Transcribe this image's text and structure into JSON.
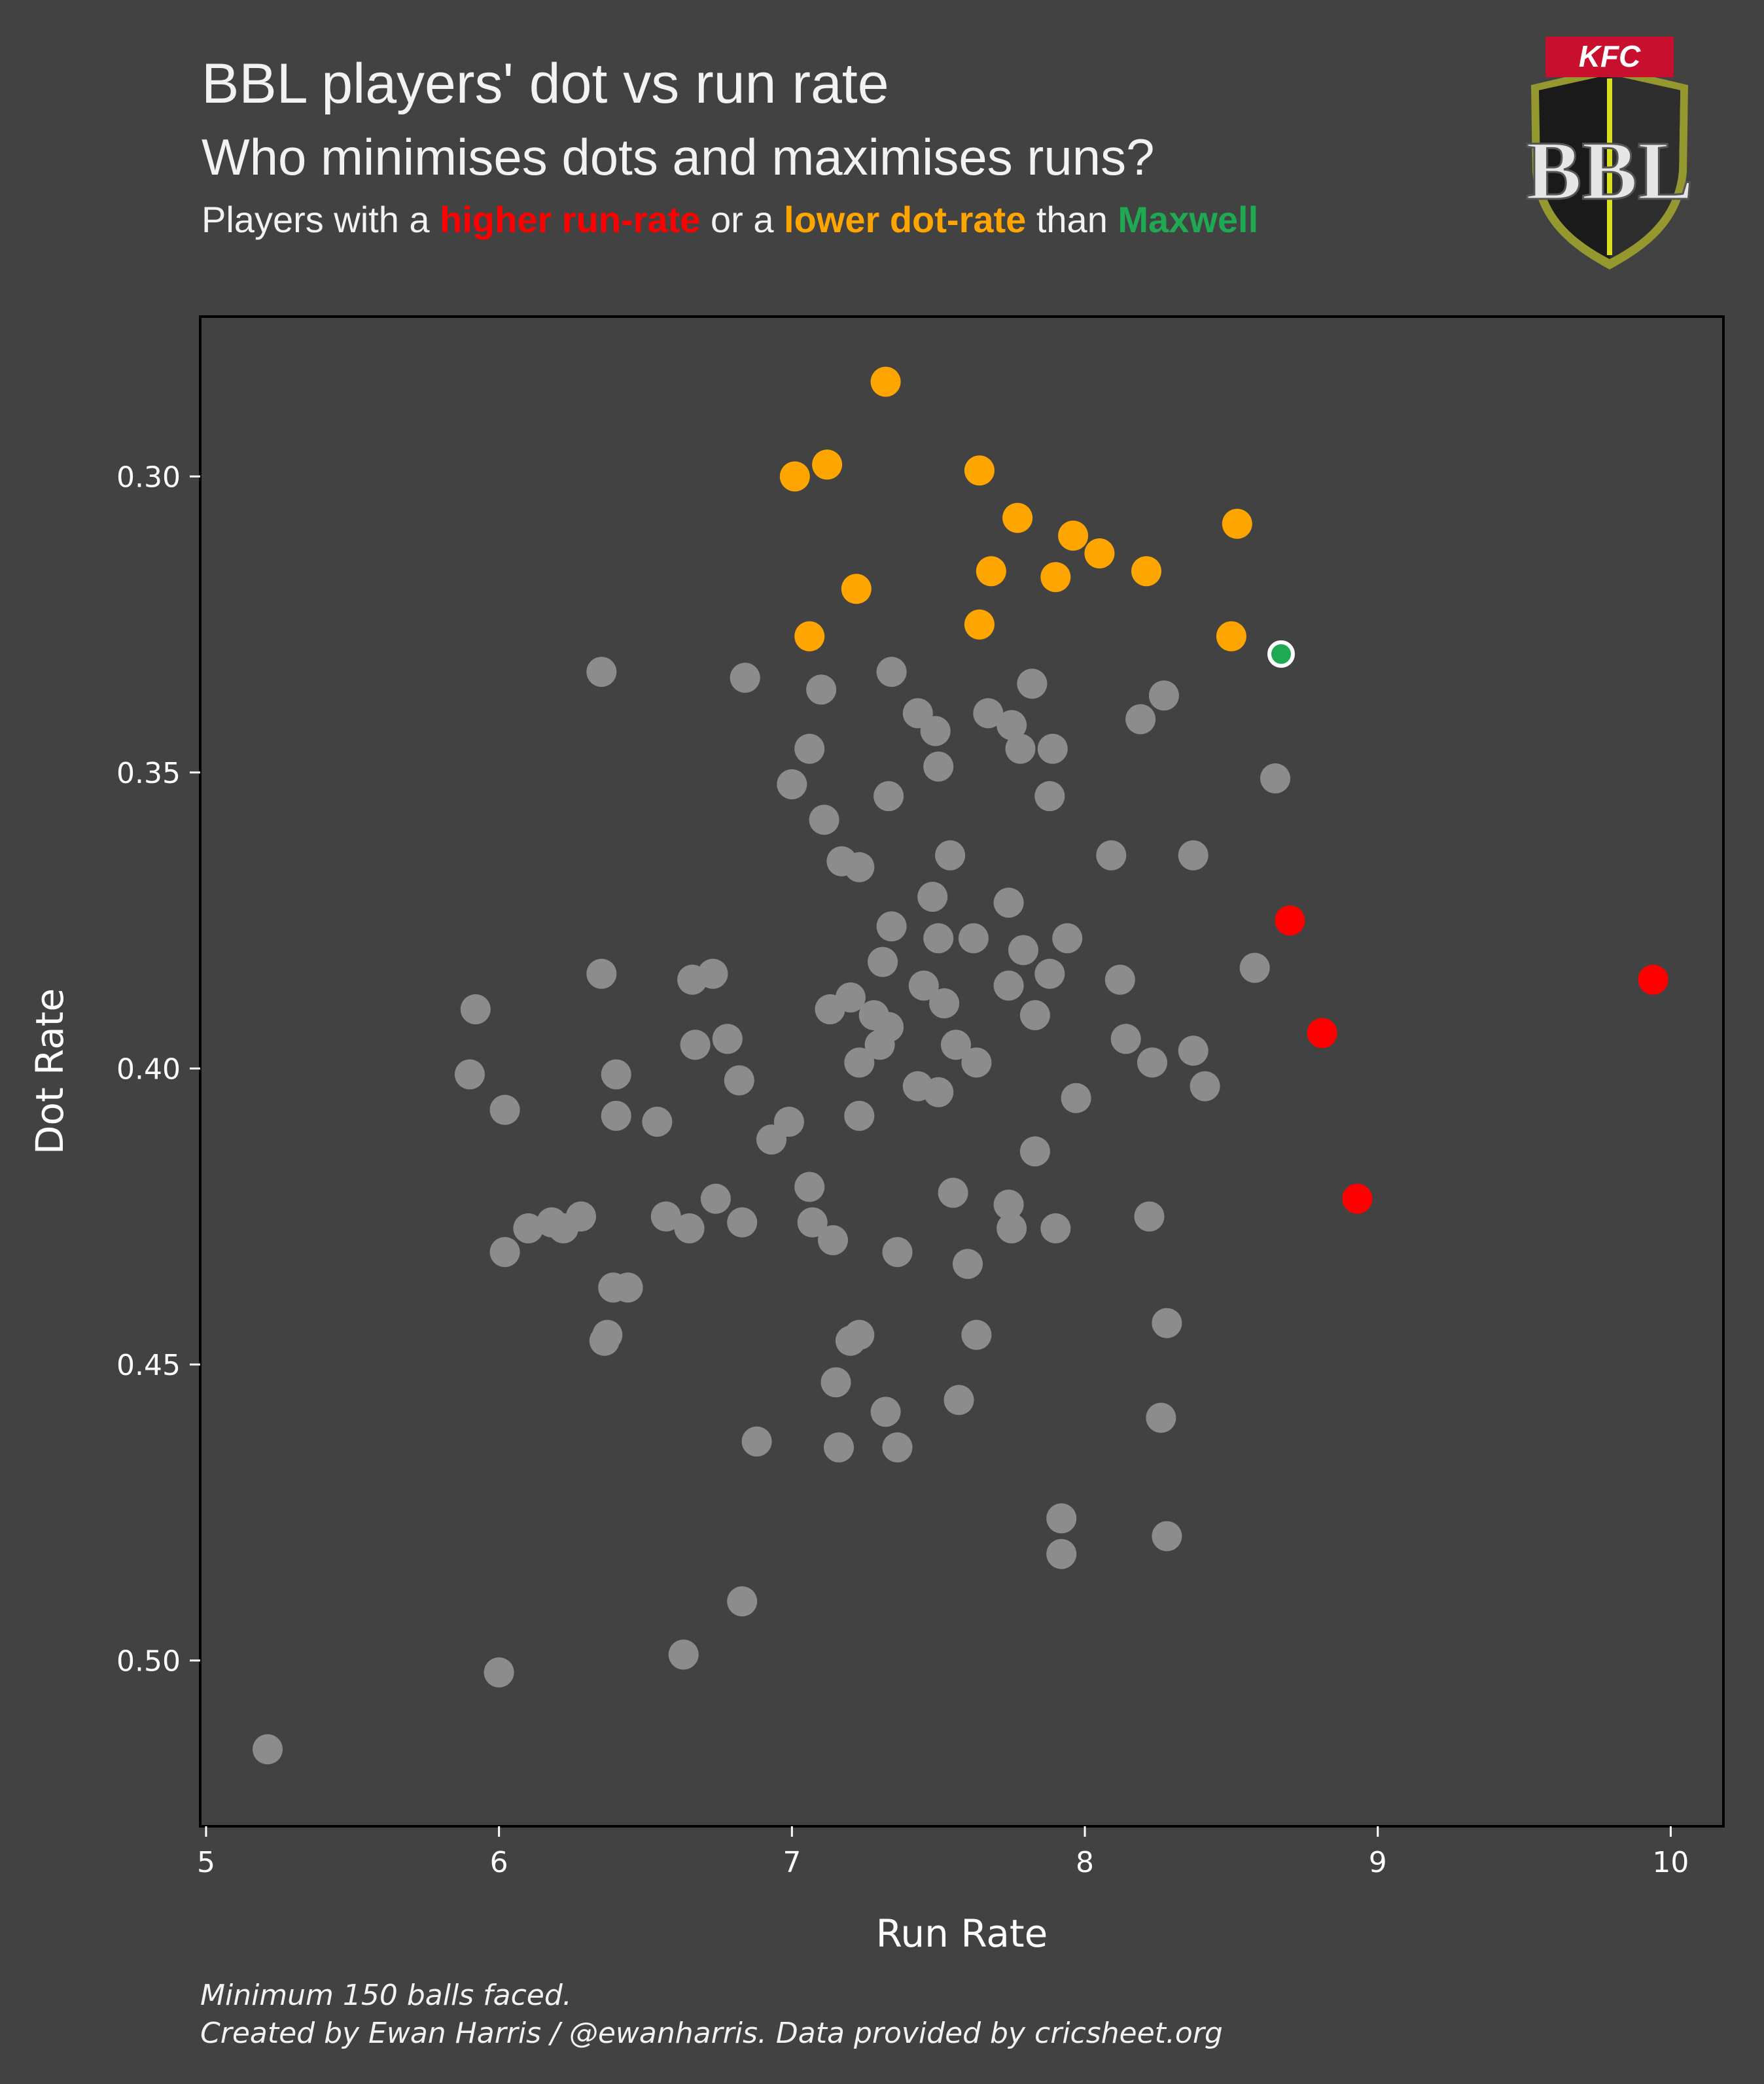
{
  "header": {
    "title": "BBL players' dot vs run rate",
    "subtitle": "Who minimises dots and maximises runs?",
    "legend_prefix": "Players with a ",
    "legend_red": "higher run-rate",
    "legend_mid": " or a ",
    "legend_orange": "lower dot-rate",
    "legend_than": " than ",
    "legend_green": "Maxwell"
  },
  "logo": {
    "brand_text": "KFC",
    "league_text": "BBL"
  },
  "colors": {
    "background": "#424242",
    "grey": "#8c8c8c",
    "red": "#ff0000",
    "orange": "#ffa500",
    "green": "#1fa952"
  },
  "caption": {
    "line1": "Minimum 150 balls faced.",
    "line2": "Created by Ewan Harris / @ewanharris. Data provided by cricsheet.org"
  },
  "chart_data": {
    "type": "scatter",
    "xlabel": "Run Rate",
    "ylabel": "Dot Rate",
    "xlim": [
      4.98,
      10.18
    ],
    "ylim": [
      0.528,
      0.273
    ],
    "y_inverted": true,
    "xticks": [
      5,
      6,
      7,
      8,
      9,
      10
    ],
    "xtick_labels": [
      "5",
      "6",
      "7",
      "8",
      "9",
      "10"
    ],
    "yticks": [
      0.3,
      0.35,
      0.4,
      0.45,
      0.5
    ],
    "ytick_labels": [
      "0.30",
      "0.35",
      "0.40",
      "0.45",
      "0.50"
    ],
    "grid": false,
    "series": [
      {
        "color": "#ffa500",
        "points": [
          [
            7.32,
            0.284
          ],
          [
            7.12,
            0.298
          ],
          [
            7.01,
            0.3
          ],
          [
            7.64,
            0.299
          ],
          [
            7.77,
            0.307
          ],
          [
            7.96,
            0.31
          ],
          [
            8.05,
            0.313
          ],
          [
            8.21,
            0.316
          ],
          [
            7.68,
            0.316
          ],
          [
            7.9,
            0.317
          ],
          [
            7.22,
            0.319
          ],
          [
            8.52,
            0.308
          ],
          [
            7.06,
            0.327
          ],
          [
            7.64,
            0.325
          ],
          [
            8.5,
            0.327
          ]
        ]
      },
      {
        "color": "#ff0000",
        "points": [
          [
            8.7,
            0.375
          ],
          [
            9.94,
            0.385
          ],
          [
            8.81,
            0.394
          ],
          [
            8.93,
            0.422
          ]
        ]
      },
      {
        "name": "Maxwell",
        "color": "#1fa952",
        "points": [
          [
            8.67,
            0.33
          ]
        ]
      },
      {
        "color": "#8c8c8c",
        "points": [
          [
            6.35,
            0.333
          ],
          [
            6.84,
            0.334
          ],
          [
            7.34,
            0.333
          ],
          [
            7.1,
            0.336
          ],
          [
            7.82,
            0.335
          ],
          [
            8.27,
            0.337
          ],
          [
            7.43,
            0.34
          ],
          [
            7.67,
            0.34
          ],
          [
            7.49,
            0.343
          ],
          [
            7.75,
            0.342
          ],
          [
            8.19,
            0.341
          ],
          [
            7.06,
            0.346
          ],
          [
            7.78,
            0.346
          ],
          [
            7.89,
            0.346
          ],
          [
            7.5,
            0.349
          ],
          [
            7.0,
            0.352
          ],
          [
            8.65,
            0.351
          ],
          [
            7.33,
            0.354
          ],
          [
            7.88,
            0.354
          ],
          [
            7.11,
            0.358
          ],
          [
            7.17,
            0.365
          ],
          [
            7.23,
            0.366
          ],
          [
            7.54,
            0.364
          ],
          [
            8.09,
            0.364
          ],
          [
            8.37,
            0.364
          ],
          [
            7.48,
            0.371
          ],
          [
            7.74,
            0.372
          ],
          [
            7.34,
            0.376
          ],
          [
            7.5,
            0.378
          ],
          [
            7.62,
            0.378
          ],
          [
            7.94,
            0.378
          ],
          [
            7.79,
            0.38
          ],
          [
            7.31,
            0.382
          ],
          [
            6.35,
            0.384
          ],
          [
            6.66,
            0.385
          ],
          [
            6.73,
            0.384
          ],
          [
            7.88,
            0.384
          ],
          [
            8.12,
            0.385
          ],
          [
            8.58,
            0.383
          ],
          [
            7.45,
            0.386
          ],
          [
            7.74,
            0.386
          ],
          [
            7.2,
            0.388
          ],
          [
            7.52,
            0.389
          ],
          [
            7.13,
            0.39
          ],
          [
            7.28,
            0.391
          ],
          [
            7.83,
            0.391
          ],
          [
            5.92,
            0.39
          ],
          [
            7.33,
            0.393
          ],
          [
            7.3,
            0.396
          ],
          [
            6.67,
            0.396
          ],
          [
            6.78,
            0.395
          ],
          [
            7.56,
            0.396
          ],
          [
            8.14,
            0.395
          ],
          [
            8.37,
            0.397
          ],
          [
            7.23,
            0.399
          ],
          [
            7.63,
            0.399
          ],
          [
            8.23,
            0.399
          ],
          [
            5.9,
            0.401
          ],
          [
            6.4,
            0.401
          ],
          [
            6.82,
            0.402
          ],
          [
            7.43,
            0.403
          ],
          [
            7.5,
            0.404
          ],
          [
            8.41,
            0.403
          ],
          [
            7.97,
            0.405
          ],
          [
            6.02,
            0.407
          ],
          [
            6.4,
            0.408
          ],
          [
            6.54,
            0.409
          ],
          [
            7.23,
            0.408
          ],
          [
            6.99,
            0.409
          ],
          [
            6.93,
            0.412
          ],
          [
            7.83,
            0.414
          ],
          [
            7.06,
            0.42
          ],
          [
            7.55,
            0.421
          ],
          [
            6.74,
            0.422
          ],
          [
            7.74,
            0.423
          ],
          [
            6.57,
            0.425
          ],
          [
            6.28,
            0.425
          ],
          [
            6.83,
            0.426
          ],
          [
            7.07,
            0.426
          ],
          [
            8.22,
            0.425
          ],
          [
            6.1,
            0.427
          ],
          [
            6.18,
            0.426
          ],
          [
            6.22,
            0.427
          ],
          [
            6.65,
            0.427
          ],
          [
            7.75,
            0.427
          ],
          [
            7.9,
            0.427
          ],
          [
            7.14,
            0.429
          ],
          [
            6.02,
            0.431
          ],
          [
            7.36,
            0.431
          ],
          [
            7.6,
            0.433
          ],
          [
            6.39,
            0.437
          ],
          [
            6.44,
            0.437
          ],
          [
            7.63,
            0.445
          ],
          [
            6.37,
            0.445
          ],
          [
            6.36,
            0.446
          ],
          [
            7.23,
            0.445
          ],
          [
            7.2,
            0.446
          ],
          [
            8.28,
            0.443
          ],
          [
            7.15,
            0.453
          ],
          [
            7.57,
            0.456
          ],
          [
            7.32,
            0.458
          ],
          [
            8.26,
            0.459
          ],
          [
            6.88,
            0.463
          ],
          [
            7.16,
            0.464
          ],
          [
            7.36,
            0.464
          ],
          [
            7.92,
            0.476
          ],
          [
            8.28,
            0.479
          ],
          [
            7.92,
            0.482
          ],
          [
            6.83,
            0.49
          ],
          [
            6.63,
            0.499
          ],
          [
            6.0,
            0.502
          ],
          [
            5.21,
            0.515
          ]
        ]
      }
    ]
  }
}
